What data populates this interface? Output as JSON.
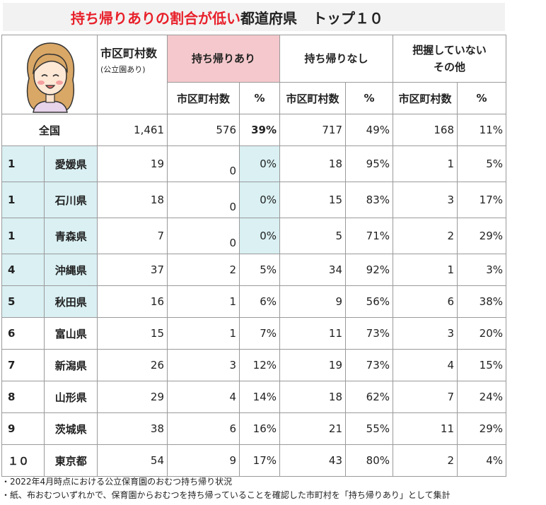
{
  "title": {
    "red": "持ち帰りありの割合が低い",
    "black": "都道府県",
    "top": "トップ１０"
  },
  "headers": {
    "col1_main": "市区町村数",
    "col1_sub": "(公立園あり)",
    "group_ari": "持ち帰りあり",
    "group_nashi": "持ち帰りなし",
    "group_other_line1": "把握していない",
    "group_other_line2": "その他",
    "sub_count": "市区町村数",
    "sub_pct": "%"
  },
  "total": {
    "label": "全国",
    "total": "1,461",
    "ari": "576",
    "ari_pct": "39%",
    "nashi": "717",
    "nashi_pct": "49%",
    "other": "168",
    "other_pct": "11%"
  },
  "rows": [
    {
      "rank": "1",
      "pref": "愛媛県",
      "total": "19",
      "ari": "0",
      "ari_pct": "0%",
      "nashi": "18",
      "nashi_pct": "95%",
      "other": "1",
      "other_pct": "5%"
    },
    {
      "rank": "1",
      "pref": "石川県",
      "total": "18",
      "ari": "0",
      "ari_pct": "0%",
      "nashi": "15",
      "nashi_pct": "83%",
      "other": "3",
      "other_pct": "17%"
    },
    {
      "rank": "1",
      "pref": "青森県",
      "total": "7",
      "ari": "0",
      "ari_pct": "0%",
      "nashi": "5",
      "nashi_pct": "71%",
      "other": "2",
      "other_pct": "29%"
    },
    {
      "rank": "4",
      "pref": "沖縄県",
      "total": "37",
      "ari": "2",
      "ari_pct": "5%",
      "nashi": "34",
      "nashi_pct": "92%",
      "other": "1",
      "other_pct": "3%"
    },
    {
      "rank": "5",
      "pref": "秋田県",
      "total": "16",
      "ari": "1",
      "ari_pct": "6%",
      "nashi": "9",
      "nashi_pct": "56%",
      "other": "6",
      "other_pct": "38%"
    },
    {
      "rank": "6",
      "pref": "富山県",
      "total": "15",
      "ari": "1",
      "ari_pct": "7%",
      "nashi": "11",
      "nashi_pct": "73%",
      "other": "3",
      "other_pct": "20%"
    },
    {
      "rank": "7",
      "pref": "新潟県",
      "total": "26",
      "ari": "3",
      "ari_pct": "12%",
      "nashi": "19",
      "nashi_pct": "73%",
      "other": "4",
      "other_pct": "15%"
    },
    {
      "rank": "8",
      "pref": "山形県",
      "total": "29",
      "ari": "4",
      "ari_pct": "14%",
      "nashi": "18",
      "nashi_pct": "62%",
      "other": "7",
      "other_pct": "24%"
    },
    {
      "rank": "9",
      "pref": "茨城県",
      "total": "38",
      "ari": "6",
      "ari_pct": "16%",
      "nashi": "21",
      "nashi_pct": "55%",
      "other": "11",
      "other_pct": "29%"
    },
    {
      "rank": "１０",
      "pref": "東京都",
      "total": "54",
      "ari": "9",
      "ari_pct": "17%",
      "nashi": "43",
      "nashi_pct": "80%",
      "other": "2",
      "other_pct": "4%"
    }
  ],
  "notes": [
    "・2022年4月時点における公立保育園のおむつ持ち帰り状況",
    "・紙、布おむついずれかで、保育園からおむつを持ち帰っていることを確認した市町村を「持ち帰りあり」として集計"
  ],
  "colors": {
    "title_red": "#e8202a",
    "header_pink": "#f4c8cc",
    "highlight_blue": "#daf0f3"
  }
}
